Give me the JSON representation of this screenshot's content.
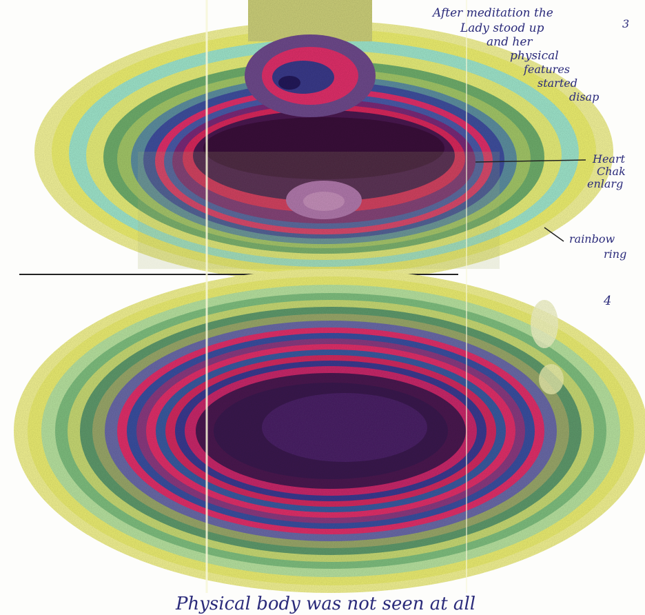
{
  "image": {
    "kind": "scanned aura imaging photographs with handwritten annotations",
    "panels": [
      {
        "number": "3",
        "annotation_lines": [
          "After meditation the",
          "Lady stood up",
          "and her",
          "physical",
          "features",
          "started",
          "disap"
        ],
        "callouts": [
          {
            "lines": [
              "Heart",
              "Chak",
              "enlarg"
            ]
          },
          {
            "lines": [
              "rainbow",
              "ring"
            ]
          }
        ]
      },
      {
        "number": "4",
        "caption": "Physical body was not seen at all"
      }
    ],
    "colors": {
      "outer_yellow": "#f2f27a",
      "cyan_band": "#8fe3d2",
      "green_band": "#5f9a6c",
      "blue_band": "#3a4fa0",
      "red_band": "#e0306a",
      "core_purple": "#4a1650",
      "core_dark": "#3a0d3a",
      "ink": "#2a2a7a"
    }
  }
}
